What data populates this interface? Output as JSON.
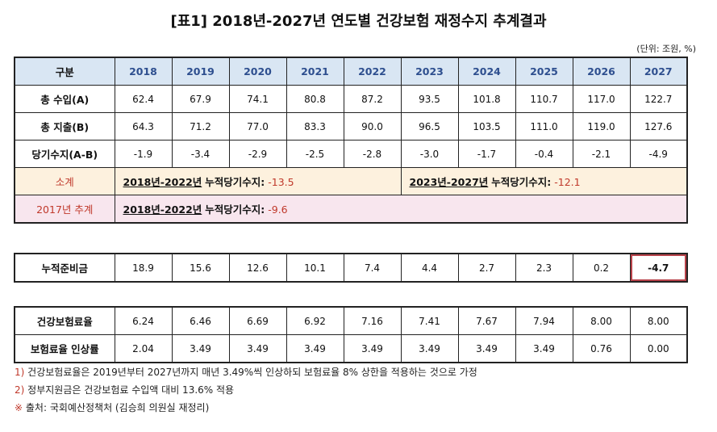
{
  "title": "[표1] 2018년-2027년 연도별 건강보험 재정수지 추계결과",
  "unit": "(단위: 조원, %)",
  "header": {
    "label": "구분",
    "years": [
      "2018",
      "2019",
      "2020",
      "2021",
      "2022",
      "2023",
      "2024",
      "2025",
      "2026",
      "2027"
    ]
  },
  "rows_main": [
    {
      "label": "총 수입(A)",
      "values": [
        "62.4",
        "67.9",
        "74.1",
        "80.8",
        "87.2",
        "93.5",
        "101.8",
        "110.7",
        "117.0",
        "122.7"
      ]
    },
    {
      "label": "총 지출(B)",
      "values": [
        "64.3",
        "71.2",
        "77.0",
        "83.3",
        "90.0",
        "96.5",
        "103.5",
        "111.0",
        "119.0",
        "127.6"
      ]
    },
    {
      "label": "당기수지(A-B)",
      "values": [
        "-1.9",
        "-3.4",
        "-2.9",
        "-2.5",
        "-2.8",
        "-3.0",
        "-1.7",
        "-0.4",
        "-2.1",
        "-4.9"
      ]
    }
  ],
  "subtotal": {
    "label": "소계",
    "left_period": "2018년-2022년",
    "left_label": "누적당기수지:",
    "left_value": "-13.5",
    "right_period": "2023년-2027년",
    "right_label": "누적당기수지:",
    "right_value": "-12.1"
  },
  "estimate2017": {
    "label": "2017년 추계",
    "period": "2018년-2022년",
    "cum_label": "누적당기수지:",
    "value": "-9.6"
  },
  "reserve": {
    "label": "누적준비금",
    "values": [
      "18.9",
      "15.6",
      "12.6",
      "10.1",
      "7.4",
      "4.4",
      "2.7",
      "2.3",
      "0.2",
      "-4.7"
    ]
  },
  "rates": [
    {
      "label": "건강보험료율",
      "values": [
        "6.24",
        "6.46",
        "6.69",
        "6.92",
        "7.16",
        "7.41",
        "7.67",
        "7.94",
        "8.00",
        "8.00"
      ]
    },
    {
      "label": "보험료율 인상률",
      "values": [
        "2.04",
        "3.49",
        "3.49",
        "3.49",
        "3.49",
        "3.49",
        "3.49",
        "3.49",
        "0.76",
        "0.00"
      ]
    }
  ],
  "notes": [
    {
      "mark": "1)",
      "text": "건강보험료율은 2019년부터 2027년까지 매년 3.49%씩 인상하되 보험료율 8% 상한을 적용하는 것으로 가정"
    },
    {
      "mark": "2)",
      "text": "정부지원금은 건강보험료 수입액 대비 13.6% 적용"
    },
    {
      "mark": "※",
      "text": "출처: 국회예산정책처 (김승희 의원실 재정리)"
    }
  ]
}
